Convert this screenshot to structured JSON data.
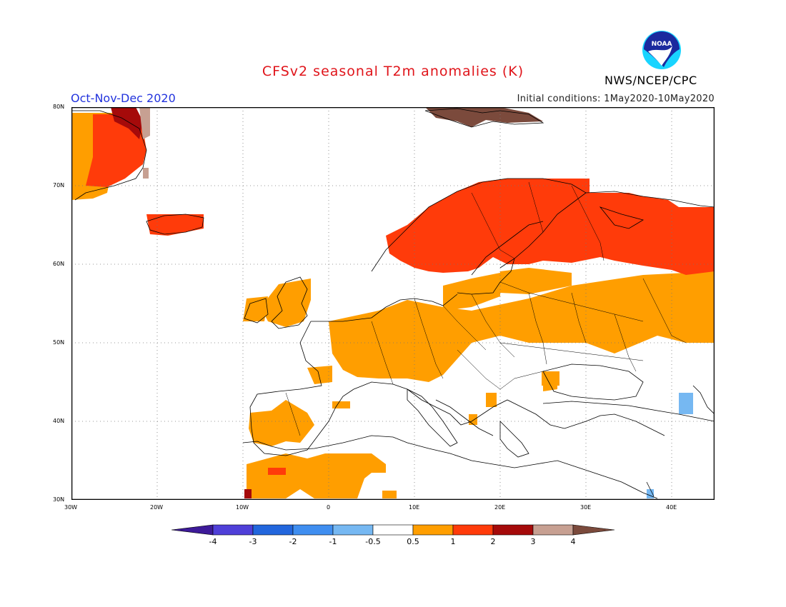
{
  "header": {
    "title": "CFSv2 seasonal T2m anomalies (K)",
    "period": "Oct-Nov-Dec 2020",
    "initial_conditions": "Initial conditions: 1May2020-10May2020",
    "agency": "NWS/NCEP/CPC",
    "logo_text": "NOAA"
  },
  "axes": {
    "lat_ticks": [
      "80N",
      "70N",
      "60N",
      "50N",
      "40N",
      "30N"
    ],
    "lon_ticks": [
      "30W",
      "20W",
      "10W",
      "0",
      "10E",
      "20E",
      "30E",
      "40E"
    ],
    "lat_range": [
      30,
      80
    ],
    "lon_range": [
      -30,
      45
    ]
  },
  "colorbar": {
    "labels": [
      "-4",
      "-3",
      "-2",
      "-1",
      "-0.5",
      "0.5",
      "1",
      "2",
      "3",
      "4"
    ],
    "colors": [
      "#3d1a99",
      "#4f3fd8",
      "#2266dd",
      "#3f8ef0",
      "#76b8f2",
      "#ffffff",
      "#ff9e00",
      "#ff3b0a",
      "#a50a0a",
      "#c7a092",
      "#7b4a3c"
    ]
  },
  "map_legend_colors": {
    "warm_0_5_to_1": "#ff9e00",
    "warm_1_to_2": "#ff3b0a",
    "warm_2_to_3": "#a50a0a",
    "warm_3_to_4": "#c7a092",
    "warm_above_4": "#7b4a3c",
    "cool_0_5_to_1": "#76b8f2"
  },
  "anomaly_regions": [
    {
      "level": "0.5-1",
      "area": "Western and central Europe"
    },
    {
      "level": "0.5-1",
      "area": "Iberia and Northwest Africa"
    },
    {
      "level": "0.5-1",
      "area": "Eastern Europe and western Russia"
    },
    {
      "level": "1-2",
      "area": "Scandinavia and northwest Russia"
    },
    {
      "level": "1-2",
      "area": "Iceland"
    },
    {
      "level": "1-2",
      "area": "Greenland east coast"
    },
    {
      "level": "2-4",
      "area": "Greenland north-east coast"
    },
    {
      "level": ">4",
      "area": "Svalbard"
    },
    {
      "level": "-0.5 to -1",
      "area": "Caucasus / eastern Turkey"
    }
  ]
}
